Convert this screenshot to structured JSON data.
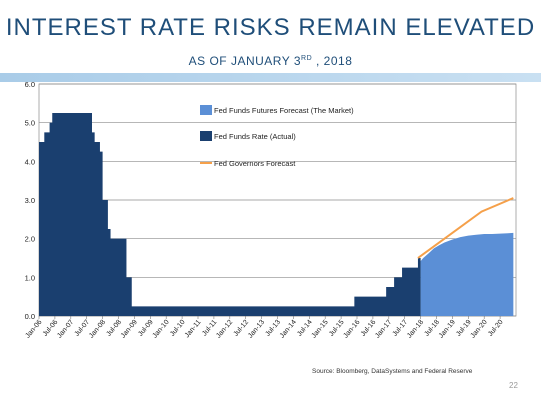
{
  "slide": {
    "title": "INTEREST RATE RISKS REMAIN ELEVATED",
    "subtitle_main": "AS OF JANUARY 3",
    "subtitle_sup": "RD",
    "subtitle_tail": " , 2018",
    "source": "Source: Bloomberg, DataSystems and Federal Reserve",
    "page_number": "22"
  },
  "colors": {
    "actual": "#1a3f6f",
    "market": "#5b8fd6",
    "governors": "#f5a04a",
    "band": "#a9cce8",
    "title": "#1f4e79"
  },
  "chart_data": {
    "type": "area",
    "ylim": [
      0,
      6
    ],
    "yticks": [
      "0.0",
      "1.0",
      "2.0",
      "3.0",
      "4.0",
      "5.0",
      "6.0"
    ],
    "x_range": [
      "Jan-06",
      "Jan-21"
    ],
    "xticks": [
      "Jan-06",
      "Jul-06",
      "Jan-07",
      "Jul-07",
      "Jan-08",
      "Jul-08",
      "Jan-09",
      "Jul-09",
      "Jan-10",
      "Jul-10",
      "Jan-11",
      "Jul-11",
      "Jan-12",
      "Jul-12",
      "Jan-13",
      "Jul-13",
      "Jan-14",
      "Jul-14",
      "Jan-15",
      "Jul-15",
      "Jan-16",
      "Jul-16",
      "Jan-17",
      "Jul-17",
      "Jan-18",
      "Jul-18",
      "Jan-19",
      "Jul-19",
      "Jan-20",
      "Jul-20"
    ],
    "grid": true,
    "legend_placement": "top-center",
    "series": [
      {
        "name": "Fed Funds Futures Forecast (The Market)",
        "kind": "area",
        "x": [
          "2018-01",
          "2018-02",
          "2018-04",
          "2018-06",
          "2018-08",
          "2018-10",
          "2019-01",
          "2019-04",
          "2019-07",
          "2019-10",
          "2020-01",
          "2020-04",
          "2020-07",
          "2020-10",
          "2020-12"
        ],
        "values": [
          1.42,
          1.5,
          1.62,
          1.75,
          1.83,
          1.9,
          1.98,
          2.04,
          2.08,
          2.1,
          2.12,
          2.12,
          2.13,
          2.14,
          2.15
        ]
      },
      {
        "name": "Fed Funds Rate (Actual)",
        "kind": "step-area",
        "x": [
          "2006-01",
          "2006-03",
          "2006-05",
          "2006-06",
          "2007-09",
          "2007-10",
          "2007-12",
          "2008-01",
          "2008-03",
          "2008-04",
          "2008-10",
          "2008-12",
          "2015-12",
          "2016-12",
          "2017-03",
          "2017-06",
          "2017-12"
        ],
        "values": [
          4.5,
          4.75,
          5.0,
          5.25,
          4.75,
          4.5,
          4.25,
          3.0,
          2.25,
          2.0,
          1.0,
          0.25,
          0.5,
          0.75,
          1.0,
          1.25,
          1.5
        ],
        "end": "2018-01"
      },
      {
        "name": "Fed Governors Forecast",
        "kind": "line",
        "x": [
          "2017-12",
          "2018-12",
          "2019-12",
          "2020-12"
        ],
        "values": [
          1.5,
          2.1,
          2.7,
          3.05
        ]
      }
    ]
  }
}
